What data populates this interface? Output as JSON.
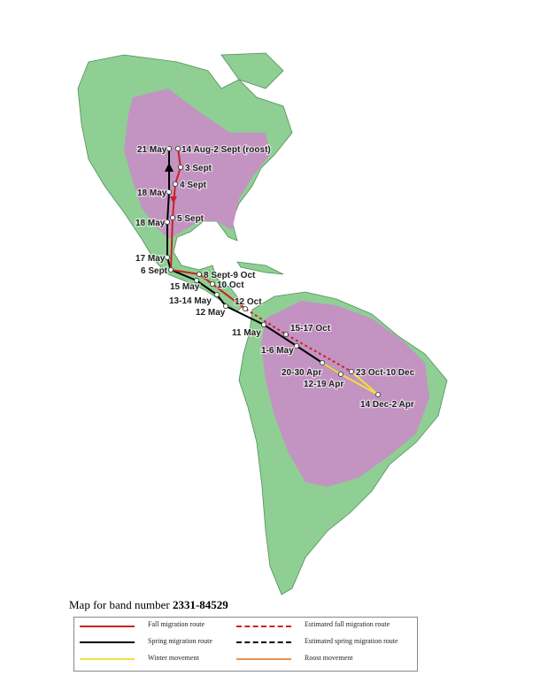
{
  "caption": {
    "prefix": "Map for band number",
    "band_number": "2331-84529"
  },
  "colors": {
    "land": "#8fcf94",
    "range": "#c98cc7",
    "fall": "#cc2222",
    "spring": "#000000",
    "winter": "#f0e040",
    "roost": "#f09050"
  },
  "points": [
    {
      "label": "21 May",
      "route": "spring"
    },
    {
      "label": "14 Aug-2 Sept (roost)",
      "route": "fall"
    },
    {
      "label": "3 Sept",
      "route": "fall"
    },
    {
      "label": "4 Sept",
      "route": "fall"
    },
    {
      "label": "18 May",
      "route": "spring"
    },
    {
      "label": "5 Sept",
      "route": "fall"
    },
    {
      "label": "18 May",
      "route": "spring"
    },
    {
      "label": "17 May",
      "route": "spring"
    },
    {
      "label": "6 Sept",
      "route": "fall"
    },
    {
      "label": "8 Sept-9 Oct",
      "route": "fall"
    },
    {
      "label": "15 May",
      "route": "spring"
    },
    {
      "label": "10 Oct",
      "route": "fall"
    },
    {
      "label": "13-14 May",
      "route": "spring"
    },
    {
      "label": "12 Oct",
      "route": "fall"
    },
    {
      "label": "12 May",
      "route": "spring"
    },
    {
      "label": "11 May",
      "route": "spring"
    },
    {
      "label": "15-17 Oct",
      "route": "fall"
    },
    {
      "label": "1-6 May",
      "route": "spring"
    },
    {
      "label": "20-30 Apr",
      "route": "winter"
    },
    {
      "label": "12-19 Apr",
      "route": "winter"
    },
    {
      "label": "23 Oct-10 Dec",
      "route": "winter"
    },
    {
      "label": "14 Dec-2 Apr",
      "route": "winter"
    }
  ],
  "legend": [
    {
      "label": "Fall migration route",
      "color": "#cc2222",
      "style": "solid"
    },
    {
      "label": "Estimated fall migration route",
      "color": "#cc2222",
      "style": "dashed"
    },
    {
      "label": "Spring migration route",
      "color": "#000000",
      "style": "solid"
    },
    {
      "label": "Estimated spring migration route",
      "color": "#000000",
      "style": "dashed"
    },
    {
      "label": "Winter movement",
      "color": "#f0e040",
      "style": "solid"
    },
    {
      "label": "Roost movement",
      "color": "#f09050",
      "style": "solid"
    }
  ]
}
